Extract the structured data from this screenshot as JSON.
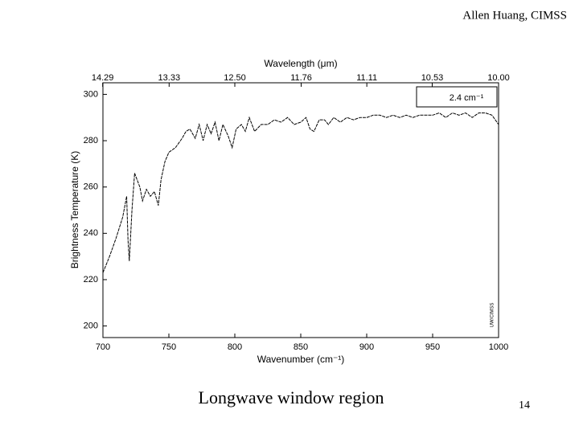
{
  "header": "Allen Huang, CIMSS",
  "caption": "Longwave window region",
  "page_number": 14,
  "chart_data": {
    "type": "line",
    "xlabel": "Wavenumber (cm⁻¹)",
    "ylabel": "Brightness Temperature (K)",
    "x2label": "Wavelength (μm)",
    "annotation": "2.4 cm⁻¹",
    "watermark": "UW/CIMSS",
    "color": "#000000",
    "xlim": [
      700,
      1000
    ],
    "xticks": [
      700,
      750,
      800,
      850,
      900,
      950,
      1000
    ],
    "ylim": [
      195,
      305
    ],
    "yticks": [
      200,
      220,
      240,
      260,
      280,
      300
    ],
    "x2ticks": [
      14.29,
      13.33,
      {
        "value": 12.5,
        "label": "12.50"
      },
      11.76,
      11.11,
      10.53,
      {
        "value": 10,
        "label": "10.00"
      }
    ],
    "x": [
      700,
      705,
      710,
      715,
      718,
      719,
      720,
      722,
      724,
      726,
      728,
      730,
      733,
      736,
      739,
      742,
      744,
      747,
      750,
      755,
      760,
      763,
      766,
      770,
      773,
      776,
      779,
      782,
      785,
      788,
      791,
      795,
      798,
      801,
      805,
      808,
      811,
      815,
      820,
      825,
      830,
      835,
      840,
      845,
      850,
      854,
      857,
      860,
      864,
      868,
      871,
      875,
      880,
      885,
      890,
      895,
      900,
      905,
      910,
      915,
      920,
      925,
      930,
      935,
      940,
      945,
      950,
      955,
      960,
      965,
      970,
      975,
      980,
      985,
      990,
      995,
      1000
    ],
    "values": [
      223,
      230,
      238,
      247,
      256,
      237,
      228,
      250,
      266,
      263,
      260,
      254,
      259,
      256,
      258,
      252,
      263,
      271,
      275,
      277,
      281,
      284,
      285,
      281,
      287,
      280,
      287,
      283,
      288,
      280,
      287,
      282,
      277,
      285,
      287,
      284,
      290,
      284,
      287,
      287,
      289,
      288,
      290,
      287,
      288,
      290,
      285,
      284,
      289,
      289,
      287,
      290,
      288,
      290,
      289,
      290,
      290,
      291,
      291,
      290,
      291,
      290,
      291,
      290,
      291,
      291,
      291,
      292,
      290,
      292,
      291,
      292,
      290,
      292,
      292,
      291,
      287
    ]
  }
}
